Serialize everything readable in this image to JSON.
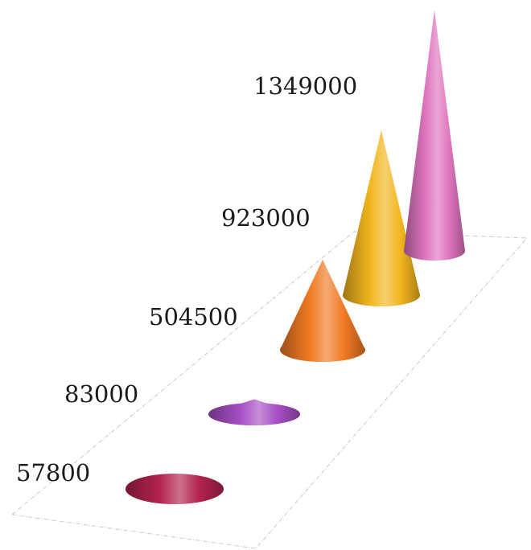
{
  "chart_data": {
    "type": "bar",
    "style": "3d-cone",
    "categories": [
      "",
      "",
      "",
      "",
      ""
    ],
    "values": [
      57800,
      83000,
      504500,
      923000,
      1349000
    ],
    "data_labels": [
      "57800",
      "83000",
      "504500",
      "923000",
      "1349000"
    ],
    "colors": [
      "#b3234f",
      "#a74fc4",
      "#f07a24",
      "#f2b51e",
      "#de74bd"
    ],
    "title": "",
    "xlabel": "",
    "ylabel": "",
    "grid": false,
    "legend": "none"
  }
}
